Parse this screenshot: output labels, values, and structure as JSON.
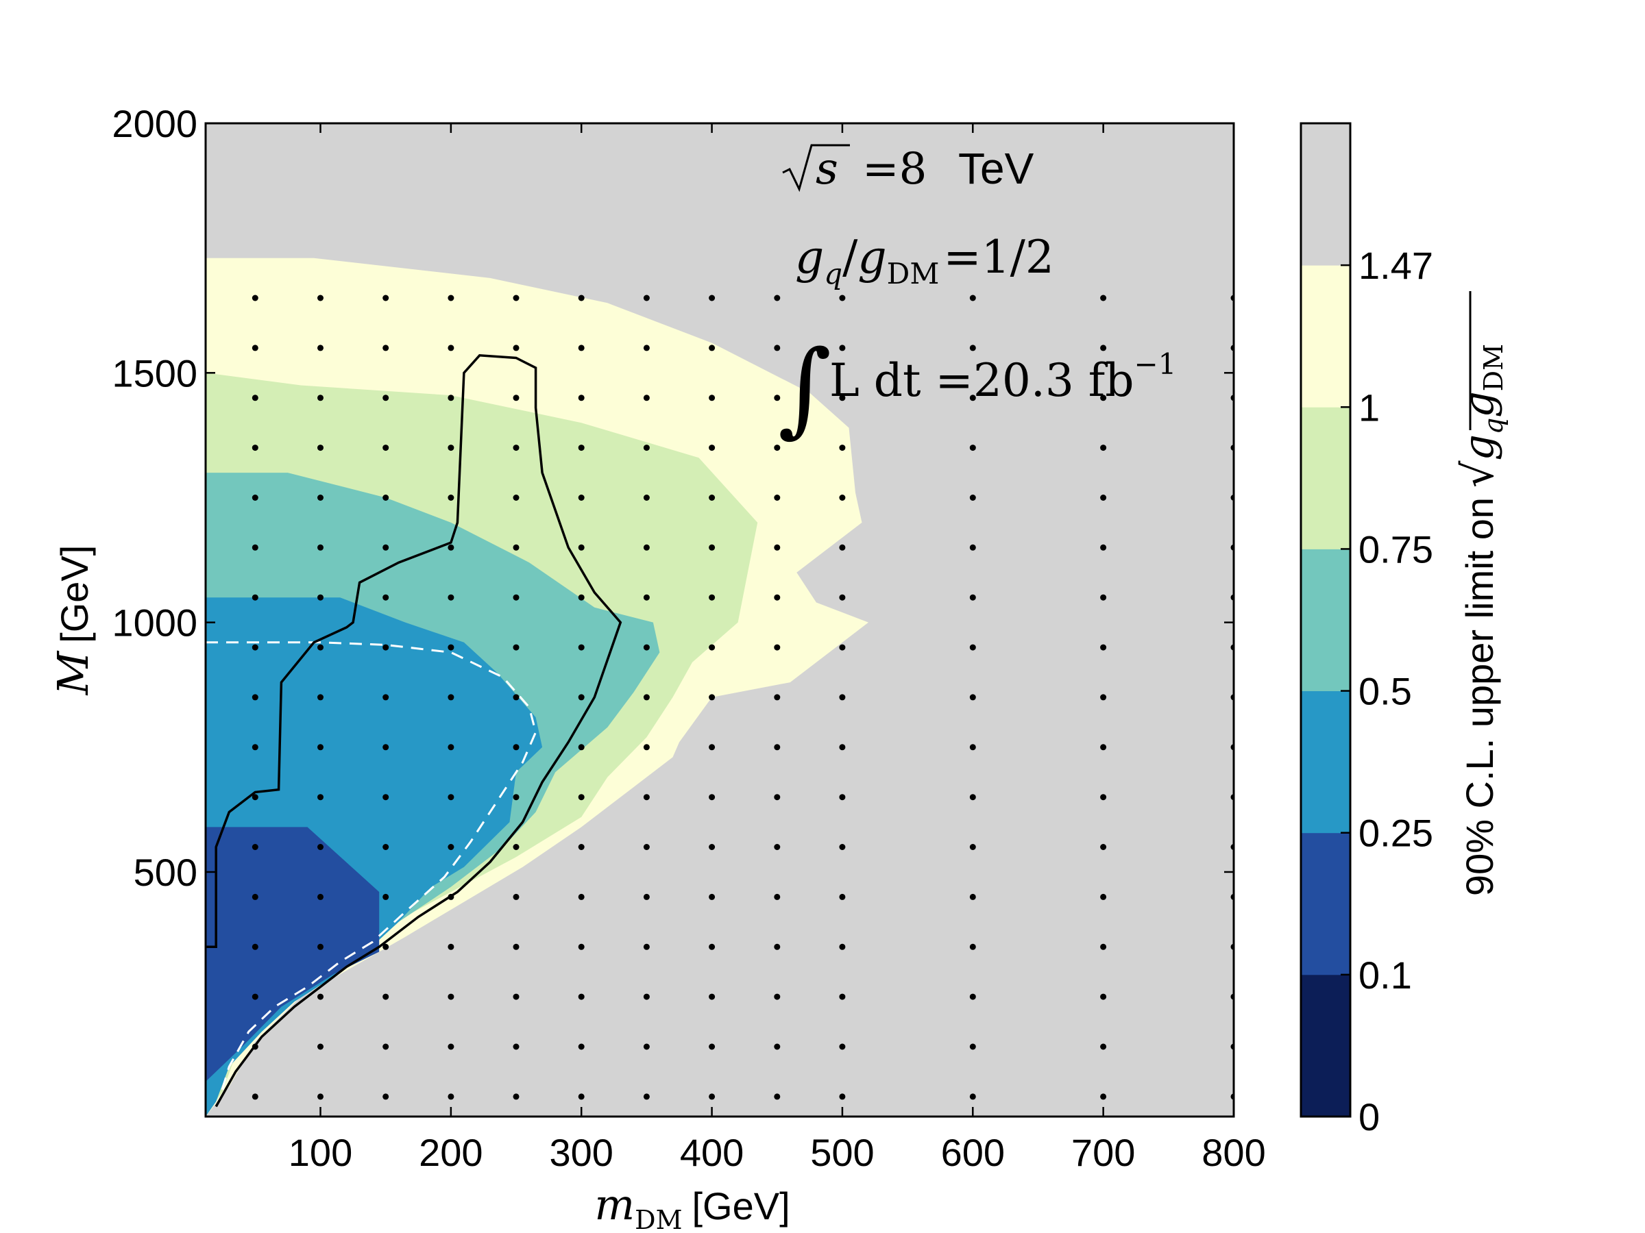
{
  "chart_data": {
    "type": "contour",
    "x_label": {
      "symbol_main": "m",
      "symbol_sub": "DM",
      "unit": "[GeV]"
    },
    "y_label": {
      "symbol_main": "M",
      "unit": "[GeV]"
    },
    "xlim": [
      12,
      800
    ],
    "ylim": [
      10,
      2000
    ],
    "x_ticks": [
      100,
      200,
      300,
      400,
      500,
      600,
      700,
      800
    ],
    "x_tick_labels": [
      "100",
      "200",
      "300",
      "400",
      "500",
      "600",
      "700",
      "800"
    ],
    "y_ticks": [
      500,
      1000,
      1500,
      2000
    ],
    "y_tick_labels": [
      "500",
      "1000",
      "1500",
      "2000"
    ],
    "annotations": {
      "sqrt_s": {
        "symbol": "s",
        "value": "=8",
        "unit": "TeV"
      },
      "coupling": {
        "g": "g",
        "sub_q": "q",
        "slash": "/",
        "sub_dm": "DM",
        "value": "=1/2"
      },
      "lumi": {
        "integral": "∫",
        "text": "L dt =20.3 fb",
        "exponent": "−1"
      }
    },
    "colorbar": {
      "label_prefix": "90% C.L. upper limit on",
      "label_symbol": "g",
      "label_sub_q": "q",
      "label_sub_dm": "DM",
      "bounds": [
        0,
        0.1,
        0.25,
        0.5,
        0.75,
        1,
        1.47
      ],
      "tick_labels": [
        "0",
        "0.1",
        "0.25",
        "0.5",
        "0.75",
        "1",
        "1.47"
      ],
      "colors": [
        "#0c1e57",
        "#234ea0",
        "#2798c6",
        "#73c7bd",
        "#d4eeb5",
        "#fdfed7",
        "#d3d3d3"
      ]
    },
    "contour_regions": [
      {
        "band": "0.1-0.25",
        "color": "#234ea0",
        "points": [
          [
            12,
            10
          ],
          [
            12,
            590
          ],
          [
            90,
            590
          ],
          [
            145,
            460
          ],
          [
            145,
            340
          ],
          [
            110,
            295
          ],
          [
            70,
            230
          ],
          [
            40,
            150
          ],
          [
            12,
            80
          ]
        ]
      },
      {
        "band": "0.25-0.5",
        "color": "#2798c6",
        "points": [
          [
            12,
            10
          ],
          [
            12,
            1050
          ],
          [
            115,
            1050
          ],
          [
            165,
            1000
          ],
          [
            210,
            960
          ],
          [
            235,
            900
          ],
          [
            265,
            810
          ],
          [
            270,
            750
          ],
          [
            250,
            700
          ],
          [
            245,
            600
          ],
          [
            210,
            510
          ],
          [
            185,
            470
          ],
          [
            160,
            400
          ],
          [
            135,
            340
          ],
          [
            110,
            290
          ],
          [
            80,
            240
          ],
          [
            55,
            180
          ],
          [
            30,
            110
          ],
          [
            20,
            40
          ]
        ]
      },
      {
        "band": "0.5-0.75",
        "color": "#73c7bd",
        "points": [
          [
            12,
            10
          ],
          [
            12,
            1300
          ],
          [
            75,
            1300
          ],
          [
            150,
            1250
          ],
          [
            200,
            1200
          ],
          [
            260,
            1120
          ],
          [
            310,
            1030
          ],
          [
            355,
            1000
          ],
          [
            360,
            940
          ],
          [
            340,
            860
          ],
          [
            320,
            790
          ],
          [
            280,
            700
          ],
          [
            265,
            620
          ],
          [
            240,
            550
          ],
          [
            200,
            470
          ],
          [
            160,
            400
          ],
          [
            125,
            340
          ],
          [
            95,
            290
          ],
          [
            60,
            220
          ],
          [
            35,
            140
          ],
          [
            20,
            50
          ]
        ]
      },
      {
        "band": "0.75-1",
        "color": "#d4eeb5",
        "points": [
          [
            12,
            10
          ],
          [
            12,
            1500
          ],
          [
            85,
            1475
          ],
          [
            200,
            1455
          ],
          [
            300,
            1400
          ],
          [
            390,
            1330
          ],
          [
            435,
            1200
          ],
          [
            420,
            1000
          ],
          [
            385,
            920
          ],
          [
            370,
            850
          ],
          [
            350,
            770
          ],
          [
            320,
            690
          ],
          [
            300,
            610
          ],
          [
            250,
            530
          ],
          [
            200,
            460
          ],
          [
            150,
            390
          ],
          [
            110,
            330
          ],
          [
            70,
            260
          ],
          [
            40,
            170
          ],
          [
            25,
            60
          ]
        ]
      },
      {
        "band": "1-1.47",
        "color": "#fdfed7",
        "points": [
          [
            12,
            10
          ],
          [
            12,
            1730
          ],
          [
            95,
            1730
          ],
          [
            230,
            1690
          ],
          [
            320,
            1640
          ],
          [
            400,
            1560
          ],
          [
            475,
            1460
          ],
          [
            505,
            1390
          ],
          [
            510,
            1260
          ],
          [
            515,
            1200
          ],
          [
            465,
            1100
          ],
          [
            480,
            1040
          ],
          [
            520,
            1000
          ],
          [
            460,
            880
          ],
          [
            400,
            850
          ],
          [
            375,
            760
          ],
          [
            370,
            730
          ],
          [
            340,
            670
          ],
          [
            300,
            590
          ],
          [
            255,
            510
          ],
          [
            210,
            440
          ],
          [
            165,
            370
          ],
          [
            125,
            310
          ],
          [
            85,
            250
          ],
          [
            50,
            160
          ],
          [
            30,
            70
          ]
        ]
      }
    ],
    "observed_limit": [
      [
        12,
        350
      ],
      [
        20,
        350
      ],
      [
        20,
        550
      ],
      [
        30,
        620
      ],
      [
        50,
        660
      ],
      [
        68,
        665
      ],
      [
        70,
        880
      ],
      [
        95,
        960
      ],
      [
        120,
        990
      ],
      [
        125,
        1000
      ],
      [
        130,
        1080
      ],
      [
        160,
        1120
      ],
      [
        200,
        1160
      ],
      [
        205,
        1200
      ],
      [
        210,
        1500
      ],
      [
        222,
        1535
      ],
      [
        250,
        1530
      ],
      [
        265,
        1510
      ],
      [
        265,
        1430
      ],
      [
        270,
        1300
      ],
      [
        290,
        1150
      ],
      [
        310,
        1060
      ],
      [
        330,
        1000
      ],
      [
        310,
        850
      ],
      [
        290,
        760
      ],
      [
        270,
        680
      ],
      [
        255,
        600
      ],
      [
        230,
        520
      ],
      [
        205,
        460
      ],
      [
        175,
        410
      ],
      [
        145,
        350
      ],
      [
        120,
        310
      ],
      [
        100,
        270
      ],
      [
        80,
        230
      ],
      [
        55,
        170
      ],
      [
        35,
        100
      ],
      [
        20,
        30
      ]
    ],
    "expected_limit": [
      [
        12,
        960
      ],
      [
        100,
        960
      ],
      [
        150,
        955
      ],
      [
        200,
        940
      ],
      [
        240,
        890
      ],
      [
        260,
        830
      ],
      [
        265,
        780
      ],
      [
        255,
        720
      ],
      [
        235,
        640
      ],
      [
        215,
        560
      ],
      [
        195,
        490
      ],
      [
        165,
        420
      ],
      [
        140,
        360
      ],
      [
        115,
        320
      ],
      [
        90,
        270
      ],
      [
        65,
        230
      ],
      [
        45,
        180
      ],
      [
        30,
        110
      ],
      [
        22,
        40
      ]
    ],
    "grid_points": {
      "x": [
        50,
        100,
        150,
        200,
        250,
        300,
        350,
        400,
        450,
        500,
        600,
        700,
        800
      ],
      "y": [
        50,
        150,
        250,
        350,
        450,
        550,
        650,
        750,
        850,
        950,
        1050,
        1150,
        1250,
        1350,
        1450,
        1550,
        1650
      ]
    }
  }
}
